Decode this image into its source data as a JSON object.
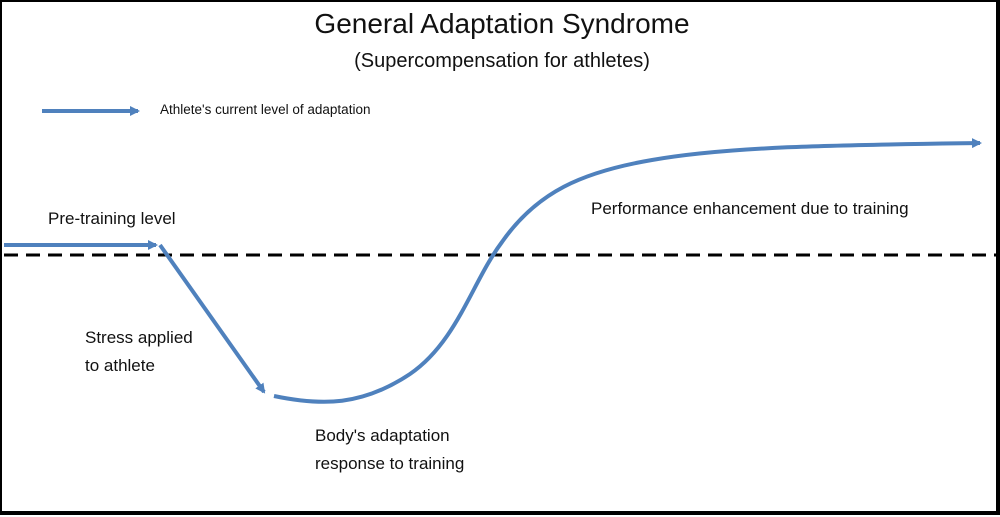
{
  "diagram": {
    "title": "General Adaptation Syndrome",
    "subtitle": "(Supercompensation for athletes)",
    "legend": {
      "label": "Athlete's current level of adaptation"
    },
    "labels": {
      "pre_training": "Pre-training level",
      "stress": [
        "Stress applied",
        "to athlete"
      ],
      "body_response": [
        "Body's adaptation",
        "response to training"
      ],
      "performance": "Performance enhancement due to training"
    },
    "colors": {
      "curve": "#4f81bd",
      "baseline": "#000000",
      "text": "#111111"
    }
  }
}
